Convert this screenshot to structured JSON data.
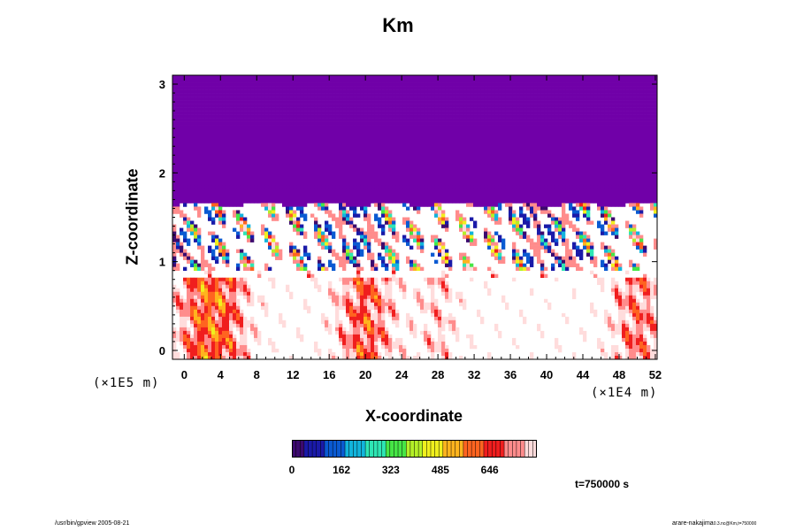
{
  "chart_data": {
    "type": "heatmap",
    "title": "Km",
    "xlabel": "X-coordinate",
    "ylabel": "Z-coordinate",
    "x_scale_label": "(×1E4 m)",
    "y_scale_label": "(×1E5 m)",
    "xlim": [
      -1.3,
      52.2
    ],
    "ylim": [
      -0.1,
      3.1
    ],
    "x_ticks": [
      "0",
      "4",
      "8",
      "12",
      "16",
      "20",
      "24",
      "28",
      "32",
      "36",
      "40",
      "44",
      "48",
      "52"
    ],
    "x_tick_values": [
      0,
      4,
      8,
      12,
      16,
      20,
      24,
      28,
      32,
      36,
      40,
      44,
      48,
      52
    ],
    "y_ticks": [
      "0",
      "1",
      "2",
      "3"
    ],
    "y_tick_values": [
      0,
      1,
      2,
      3
    ],
    "colorbar": {
      "min": 0,
      "max": 800,
      "ticks": [
        "0",
        "162",
        "323",
        "485",
        "646"
      ],
      "tick_values": [
        0,
        162,
        323,
        485,
        646
      ],
      "colors": [
        "#3c0a6e",
        "#1a1aa8",
        "#0a5ad2",
        "#12b4dc",
        "#2ee6b4",
        "#46e646",
        "#b4f028",
        "#f0f01e",
        "#ffb41e",
        "#ff6420",
        "#f01e1e",
        "#ff8c8c",
        "#ffdcdc"
      ]
    },
    "field_summary": {
      "upper_layer_z": [
        1.65,
        3.1
      ],
      "upper_layer_value": 0,
      "upper_layer_color": "#7000a8",
      "turbulent_band_z": [
        0.9,
        1.7
      ],
      "mixed_layer_z": [
        -0.1,
        0.8
      ]
    },
    "annotation_time": "t=750000 s"
  },
  "footer": {
    "left": "/usr/bin/gpview 2005-08-21",
    "right": "arare-nakajima"
  },
  "footer_right_small": "0.3.nc@Km,t=750000"
}
